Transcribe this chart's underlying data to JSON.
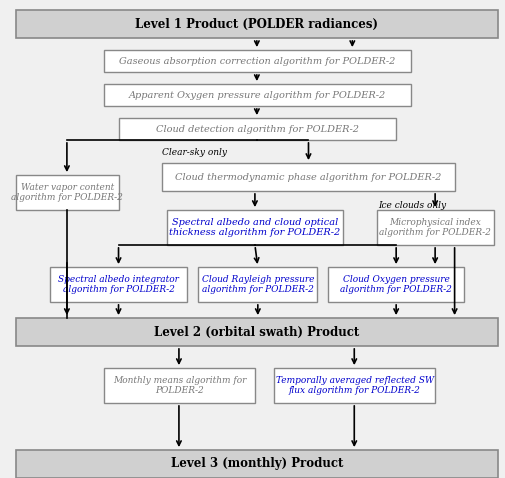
{
  "bg_color": "#f0f0f0",
  "box_bg": "#ffffff",
  "box_edge": "#888888",
  "blue_text": "#0000cc",
  "gray_text": "#777777",
  "black_text": "#000000",
  "header_bg": "#d0d0d0",
  "header_text": "#000000",
  "arrow_color": "#000000",
  "fig_width": 5.05,
  "fig_height": 4.78,
  "level1_label": "Level 1 Product (POLDER radiances)",
  "level2_label": "Level 2 (orbital swath) Product",
  "level3_label": "Level 3 (monthly) Product",
  "box1_text": "Gaseous absorption correction algorithm for POLDER-2",
  "box2_text": "Apparent Oxygen pressure algorithm for POLDER-2",
  "box3_text": "Cloud detection algorithm for POLDER-2",
  "box_wv_text": "Water vapor content\nalgorithm for POLDER-2",
  "box_cloud_thermo_text": "Cloud thermodynamic phase algorithm for POLDER-2",
  "box_spectral_albedo_text": "Spectral albedo and cloud optical\nthickness algorithm for POLDER-2",
  "box_micro_text": "Microphysical index\nalgorithm for POLDER-2",
  "box_sai_text": "Spectral albedo integrator\nalgorithm for POLDER-2",
  "box_crp_text": "Cloud Rayleigh pressure\nalgorithm for POLDER-2",
  "box_cop_text": "Cloud Oxygen pressure\nalgorithm for POLDER-2",
  "box_monthly_text": "Monthly means algorithm for\nPOLDER-2",
  "box_temporal_text": "Temporally averaged reflected SW\nflux algorithm for POLDER-2",
  "label_clearsky": "Clear-sky only",
  "label_iceclouds": "Ice clouds only"
}
